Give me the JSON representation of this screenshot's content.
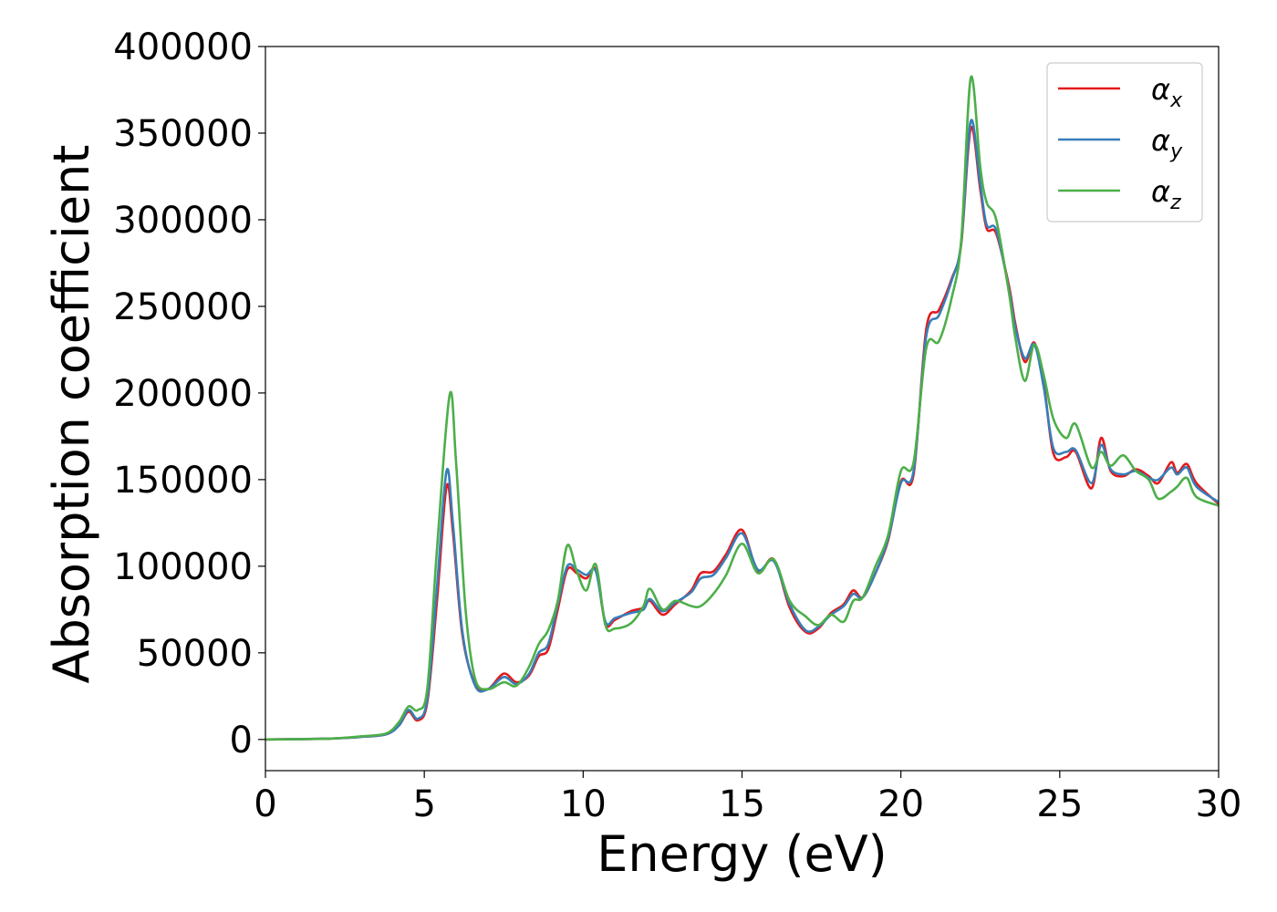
{
  "chart_data": {
    "type": "line",
    "title": "",
    "xlabel": "Energy (eV)",
    "ylabel": "Absorption coefficient",
    "xlim": [
      0,
      30
    ],
    "ylim": [
      -18000,
      400000
    ],
    "xticks": [
      0,
      5,
      10,
      15,
      20,
      25,
      30
    ],
    "yticks": [
      0,
      50000,
      100000,
      150000,
      200000,
      250000,
      300000,
      350000,
      400000
    ],
    "grid": false,
    "legend_position": "top-right",
    "series": [
      {
        "name": "α_x",
        "label_base": "α",
        "label_sub": "x",
        "color": "#e41a1c",
        "points": [
          [
            0,
            0
          ],
          [
            2,
            500
          ],
          [
            3,
            1500
          ],
          [
            3.8,
            3000
          ],
          [
            4.2,
            8000
          ],
          [
            4.5,
            16000
          ],
          [
            4.8,
            11000
          ],
          [
            5.1,
            22000
          ],
          [
            5.4,
            80000
          ],
          [
            5.7,
            146000
          ],
          [
            5.9,
            120000
          ],
          [
            6.2,
            60000
          ],
          [
            6.6,
            32000
          ],
          [
            7.0,
            29000
          ],
          [
            7.5,
            38000
          ],
          [
            7.9,
            33000
          ],
          [
            8.3,
            37000
          ],
          [
            8.6,
            48000
          ],
          [
            8.9,
            52000
          ],
          [
            9.2,
            75000
          ],
          [
            9.5,
            98000
          ],
          [
            9.8,
            96000
          ],
          [
            10.1,
            93000
          ],
          [
            10.4,
            98000
          ],
          [
            10.7,
            67000
          ],
          [
            11.0,
            69000
          ],
          [
            11.5,
            74000
          ],
          [
            11.9,
            76000
          ],
          [
            12.1,
            80000
          ],
          [
            12.5,
            72000
          ],
          [
            12.9,
            78000
          ],
          [
            13.4,
            86000
          ],
          [
            13.7,
            96000
          ],
          [
            14.1,
            97000
          ],
          [
            14.5,
            107000
          ],
          [
            15.0,
            121000
          ],
          [
            15.5,
            97000
          ],
          [
            16.0,
            104000
          ],
          [
            16.5,
            76000
          ],
          [
            17.0,
            62000
          ],
          [
            17.4,
            64000
          ],
          [
            17.8,
            73000
          ],
          [
            18.2,
            78000
          ],
          [
            18.5,
            86000
          ],
          [
            18.8,
            82000
          ],
          [
            19.2,
            96000
          ],
          [
            19.6,
            115000
          ],
          [
            20.0,
            149000
          ],
          [
            20.4,
            153000
          ],
          [
            20.8,
            237000
          ],
          [
            21.2,
            248000
          ],
          [
            21.6,
            266000
          ],
          [
            21.9,
            286000
          ],
          [
            22.2,
            353000
          ],
          [
            22.5,
            317000
          ],
          [
            22.7,
            295000
          ],
          [
            23.0,
            292000
          ],
          [
            23.4,
            262000
          ],
          [
            23.6,
            240000
          ],
          [
            23.9,
            218000
          ],
          [
            24.2,
            229000
          ],
          [
            24.5,
            205000
          ],
          [
            24.8,
            165000
          ],
          [
            25.2,
            163000
          ],
          [
            25.5,
            166000
          ],
          [
            26.0,
            145000
          ],
          [
            26.3,
            174000
          ],
          [
            26.6,
            155000
          ],
          [
            27.0,
            152000
          ],
          [
            27.4,
            156000
          ],
          [
            27.8,
            152000
          ],
          [
            28.1,
            148000
          ],
          [
            28.5,
            160000
          ],
          [
            28.7,
            154000
          ],
          [
            29.0,
            159000
          ],
          [
            29.3,
            148000
          ],
          [
            30,
            136000
          ]
        ]
      },
      {
        "name": "α_y",
        "label_base": "α",
        "label_sub": "y",
        "color": "#377eb8",
        "points": [
          [
            0,
            0
          ],
          [
            2,
            500
          ],
          [
            3,
            1500
          ],
          [
            3.8,
            3000
          ],
          [
            4.2,
            8000
          ],
          [
            4.5,
            17000
          ],
          [
            4.8,
            12000
          ],
          [
            5.1,
            24000
          ],
          [
            5.4,
            88000
          ],
          [
            5.7,
            155000
          ],
          [
            5.9,
            125000
          ],
          [
            6.2,
            62000
          ],
          [
            6.6,
            31000
          ],
          [
            7.0,
            29000
          ],
          [
            7.5,
            36000
          ],
          [
            7.9,
            32000
          ],
          [
            8.3,
            38000
          ],
          [
            8.6,
            50000
          ],
          [
            8.9,
            55000
          ],
          [
            9.2,
            78000
          ],
          [
            9.5,
            100000
          ],
          [
            9.8,
            98000
          ],
          [
            10.1,
            95000
          ],
          [
            10.4,
            97000
          ],
          [
            10.7,
            68000
          ],
          [
            11.0,
            70000
          ],
          [
            11.5,
            73000
          ],
          [
            11.9,
            75000
          ],
          [
            12.1,
            81000
          ],
          [
            12.5,
            74000
          ],
          [
            12.9,
            79000
          ],
          [
            13.4,
            85000
          ],
          [
            13.7,
            93000
          ],
          [
            14.1,
            95000
          ],
          [
            14.5,
            105000
          ],
          [
            15.0,
            119000
          ],
          [
            15.5,
            98000
          ],
          [
            16.0,
            103000
          ],
          [
            16.5,
            78000
          ],
          [
            17.0,
            63000
          ],
          [
            17.4,
            65000
          ],
          [
            17.8,
            72000
          ],
          [
            18.2,
            77000
          ],
          [
            18.5,
            84000
          ],
          [
            18.8,
            82000
          ],
          [
            19.2,
            96000
          ],
          [
            19.6,
            116000
          ],
          [
            20.0,
            148000
          ],
          [
            20.4,
            155000
          ],
          [
            20.8,
            233000
          ],
          [
            21.2,
            245000
          ],
          [
            21.6,
            265000
          ],
          [
            21.9,
            287000
          ],
          [
            22.2,
            357000
          ],
          [
            22.5,
            320000
          ],
          [
            22.7,
            297000
          ],
          [
            23.0,
            294000
          ],
          [
            23.4,
            260000
          ],
          [
            23.6,
            238000
          ],
          [
            23.9,
            220000
          ],
          [
            24.2,
            228000
          ],
          [
            24.5,
            203000
          ],
          [
            24.8,
            168000
          ],
          [
            25.2,
            166000
          ],
          [
            25.5,
            167000
          ],
          [
            26.0,
            148000
          ],
          [
            26.3,
            170000
          ],
          [
            26.6,
            156000
          ],
          [
            27.0,
            153000
          ],
          [
            27.4,
            155000
          ],
          [
            27.8,
            151000
          ],
          [
            28.1,
            150000
          ],
          [
            28.5,
            157000
          ],
          [
            28.7,
            153000
          ],
          [
            29.0,
            157000
          ],
          [
            29.3,
            146000
          ],
          [
            30,
            137000
          ]
        ]
      },
      {
        "name": "α_z",
        "label_base": "α",
        "label_sub": "z",
        "color": "#4daf4a",
        "points": [
          [
            0,
            0
          ],
          [
            2,
            500
          ],
          [
            3,
            1800
          ],
          [
            3.8,
            3500
          ],
          [
            4.2,
            10000
          ],
          [
            4.5,
            19000
          ],
          [
            4.8,
            17000
          ],
          [
            5.1,
            30000
          ],
          [
            5.4,
            110000
          ],
          [
            5.8,
            199000
          ],
          [
            6.0,
            160000
          ],
          [
            6.3,
            75000
          ],
          [
            6.6,
            35000
          ],
          [
            7.0,
            29000
          ],
          [
            7.5,
            33000
          ],
          [
            7.9,
            31000
          ],
          [
            8.3,
            42000
          ],
          [
            8.6,
            55000
          ],
          [
            8.9,
            63000
          ],
          [
            9.2,
            80000
          ],
          [
            9.5,
            112000
          ],
          [
            9.8,
            97000
          ],
          [
            10.1,
            86000
          ],
          [
            10.4,
            101000
          ],
          [
            10.7,
            66000
          ],
          [
            11.0,
            64000
          ],
          [
            11.5,
            67000
          ],
          [
            11.9,
            77000
          ],
          [
            12.1,
            87000
          ],
          [
            12.5,
            75000
          ],
          [
            12.9,
            80000
          ],
          [
            13.4,
            77000
          ],
          [
            13.7,
            77000
          ],
          [
            14.1,
            84000
          ],
          [
            14.5,
            95000
          ],
          [
            15.0,
            113000
          ],
          [
            15.5,
            96000
          ],
          [
            16.0,
            104000
          ],
          [
            16.5,
            80000
          ],
          [
            17.0,
            71000
          ],
          [
            17.4,
            66000
          ],
          [
            17.8,
            72000
          ],
          [
            18.2,
            68000
          ],
          [
            18.5,
            80000
          ],
          [
            18.8,
            82000
          ],
          [
            19.2,
            100000
          ],
          [
            19.6,
            118000
          ],
          [
            20.0,
            155000
          ],
          [
            20.4,
            160000
          ],
          [
            20.8,
            226000
          ],
          [
            21.2,
            230000
          ],
          [
            21.6,
            255000
          ],
          [
            21.9,
            288000
          ],
          [
            22.2,
            382000
          ],
          [
            22.5,
            330000
          ],
          [
            22.7,
            310000
          ],
          [
            23.0,
            300000
          ],
          [
            23.4,
            258000
          ],
          [
            23.6,
            232000
          ],
          [
            23.9,
            207000
          ],
          [
            24.2,
            228000
          ],
          [
            24.5,
            210000
          ],
          [
            24.8,
            185000
          ],
          [
            25.2,
            174000
          ],
          [
            25.5,
            182000
          ],
          [
            26.0,
            157000
          ],
          [
            26.3,
            166000
          ],
          [
            26.6,
            158000
          ],
          [
            27.0,
            164000
          ],
          [
            27.4,
            155000
          ],
          [
            27.8,
            150000
          ],
          [
            28.1,
            139000
          ],
          [
            28.5,
            143000
          ],
          [
            28.7,
            146000
          ],
          [
            29.0,
            151000
          ],
          [
            29.3,
            140000
          ],
          [
            30,
            135000
          ]
        ]
      }
    ]
  }
}
